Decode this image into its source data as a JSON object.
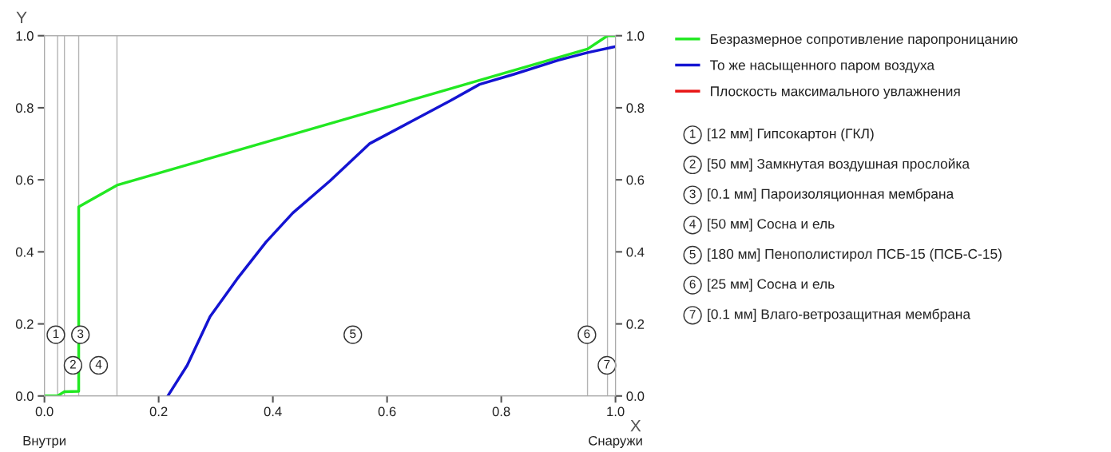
{
  "chart_data": {
    "type": "line",
    "xlabel": "X",
    "ylabel": "Y",
    "xlim": [
      0,
      1
    ],
    "xticks": [
      {
        "value": 0,
        "label": "0.0"
      },
      0.2,
      0.4,
      0.6,
      0.8,
      {
        "value": 1,
        "label": "1.0"
      }
    ],
    "ylim": [
      0,
      1
    ],
    "yticks": [
      {
        "value": 0,
        "label": "0.0"
      },
      0.2,
      0.4,
      0.6,
      0.8,
      {
        "value": 1,
        "label": "1.0"
      }
    ],
    "y2lim": [
      0,
      1
    ],
    "y2ticks": [
      {
        "value": 0,
        "label": "0.0"
      },
      0.2,
      0.4,
      0.6,
      0.8,
      {
        "value": 1,
        "label": "1.0"
      }
    ],
    "grid": false,
    "legend": "right",
    "line_style": "solid",
    "marker": "none",
    "series": [
      {
        "name": "Безразмерное сопротивление паропроницанию",
        "color": "#22e822",
        "x": [
          0,
          0.023,
          0.035,
          0.06,
          0.06,
          0.127,
          0.951,
          0.986,
          1.0
        ],
        "values": [
          0,
          0,
          0.012,
          0.013,
          0.525,
          0.585,
          0.963,
          1.0,
          1.0
        ]
      },
      {
        "name": "То же насыщенного паром воздуха",
        "color": "#1414d2",
        "x": [
          0.216,
          0.25,
          0.29,
          0.337,
          0.388,
          0.435,
          0.5,
          0.57,
          0.64,
          0.711,
          0.762,
          0.822,
          0.9,
          0.951,
          1.0
        ],
        "values": [
          0,
          0.085,
          0.22,
          0.324,
          0.427,
          0.508,
          0.597,
          0.701,
          0.76,
          0.82,
          0.865,
          0.893,
          0.932,
          0.953,
          0.97
        ]
      },
      {
        "name": "Плоскость максимального увлажнения",
        "color": "#e81414"
      }
    ],
    "ref_lines": [
      {
        "axis": "x",
        "value": 0.023,
        "color": "#b4b4b4"
      },
      {
        "axis": "x",
        "value": 0.035,
        "color": "#b4b4b4"
      },
      {
        "axis": "x",
        "value": 0.06,
        "color": "#b4b4b4"
      },
      {
        "axis": "x",
        "value": 0.127,
        "color": "#b4b4b4"
      },
      {
        "axis": "x",
        "value": 0.951,
        "color": "#b4b4b4"
      },
      {
        "axis": "x",
        "value": 0.986,
        "color": "#b4b4b4"
      }
    ],
    "annotations": [
      {
        "text": "1",
        "x": 0.02,
        "y": 0.17
      },
      {
        "text": "2",
        "x": 0.05,
        "y": 0.085
      },
      {
        "text": "3",
        "x": 0.063,
        "y": 0.17
      },
      {
        "text": "4",
        "x": 0.095,
        "y": 0.085
      },
      {
        "text": "5",
        "x": 0.54,
        "y": 0.17
      },
      {
        "text": "6",
        "x": 0.95,
        "y": 0.17
      },
      {
        "text": "7",
        "x": 0.985,
        "y": 0.085
      },
      "[12 мм] Гипсокартон (ГКЛ)",
      "[50 мм] Замкнутая воздушная прослойка",
      "[0.1 мм] Пароизоляционная мембрана",
      "[50 мм] Сосна и ель",
      "[180 мм] Пенополистирол ПСБ-15 (ПСБ-С-15)",
      "[25 мм] Сосна и ель",
      "[0.1 мм] Влаго-ветрозащитная мембрана",
      "Внутри",
      "Снаружи"
    ]
  }
}
